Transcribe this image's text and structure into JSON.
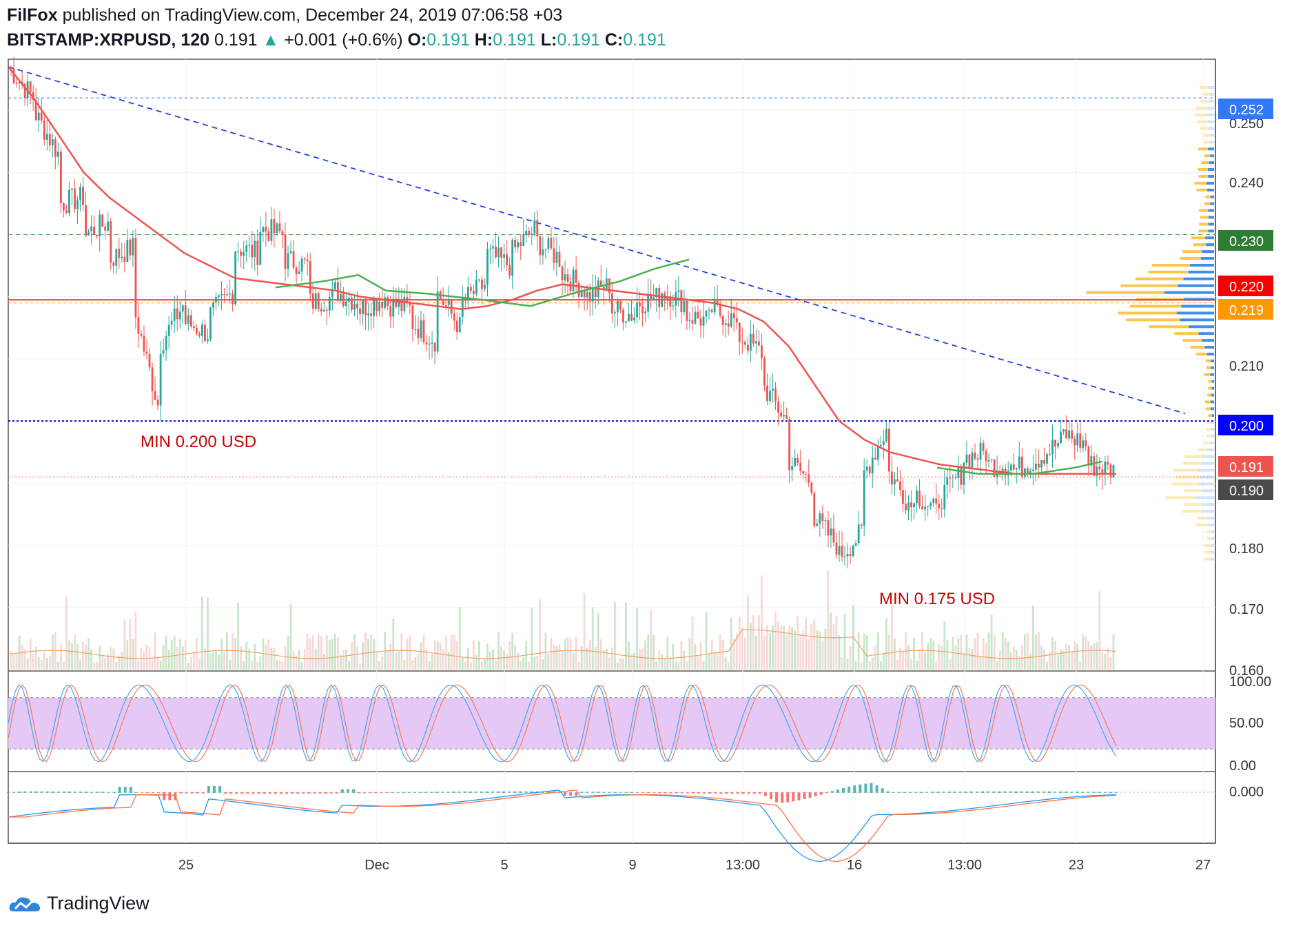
{
  "header": {
    "author": "FilFox",
    "published": "published on TradingView.com, December 24, 2019 07:06:58 +03",
    "symbol": "BITSTAMP:XRPUSD, 120",
    "price": "0.191",
    "arrow": "▲",
    "change": "+0.001 (+0.6%)",
    "o_label": "O:",
    "o": "0.191",
    "h_label": "H:",
    "h": "0.191",
    "l_label": "L:",
    "l": "0.191",
    "c_label": "C:",
    "c": "0.191"
  },
  "footer": {
    "brand": "TradingView"
  },
  "colors": {
    "up": "#26a69a",
    "down": "#ef5350",
    "ma": "#ef5350",
    "ma2": "#4caf50",
    "trend": "#1e40e6",
    "support": "#0000cc",
    "resistance": "#e53935",
    "label_blue": "#3179f5",
    "label_green": "#2e7d32",
    "label_red": "#f50000",
    "label_orange": "#ff9800",
    "label_dark": "#4a4a4a",
    "annot": "#cc0000"
  },
  "annotations": {
    "min1": "MIN 0.200 USD",
    "min2": "MIN 0.175 USD"
  },
  "chart_data": {
    "type": "candlestick",
    "symbol": "BITSTAMP:XRPUSD",
    "interval": "120",
    "ylim": [
      0.16,
      0.258
    ],
    "y_ticks": [
      "0.250",
      "0.240",
      "0.230",
      "0.220",
      "0.210",
      "0.200",
      "0.190",
      "0.180",
      "0.170",
      "0.160"
    ],
    "x_ticks": [
      "25",
      "Dec",
      "5",
      "9",
      "13:00",
      "16",
      "13:00",
      "23",
      "27"
    ],
    "price_labels": [
      "0.252",
      "0.230",
      "0.220",
      "0.219",
      "0.200",
      "0.191",
      "0.190"
    ],
    "levels": {
      "top_dashed": 0.252,
      "green_dashed": 0.23,
      "red_solid": 0.2195,
      "orange_dashed": 0.219,
      "support": 0.2,
      "last": 0.191
    },
    "price_path": [
      [
        0.25,
        0.257
      ],
      [
        0.252,
        0.25
      ],
      [
        0.243,
        0.235
      ],
      [
        0.236,
        0.23
      ],
      [
        0.232,
        0.226
      ],
      [
        0.228,
        0.218
      ],
      [
        0.202,
        0.212
      ],
      [
        0.219,
        0.216
      ],
      [
        0.214,
        0.217
      ],
      [
        0.221,
        0.228
      ],
      [
        0.227,
        0.231
      ],
      [
        0.23,
        0.226
      ],
      [
        0.225,
        0.219
      ],
      [
        0.22,
        0.221
      ],
      [
        0.219,
        0.218
      ],
      [
        0.22,
        0.219
      ],
      [
        0.218,
        0.216
      ],
      [
        0.213,
        0.221
      ],
      [
        0.215,
        0.219
      ],
      [
        0.222,
        0.227
      ],
      [
        0.225,
        0.227
      ],
      [
        0.231,
        0.229
      ],
      [
        0.226,
        0.224
      ],
      [
        0.221,
        0.22
      ],
      [
        0.222,
        0.218
      ],
      [
        0.217,
        0.219
      ],
      [
        0.22,
        0.221
      ],
      [
        0.219,
        0.217
      ],
      [
        0.216,
        0.218
      ],
      [
        0.216,
        0.214
      ],
      [
        0.211,
        0.206
      ],
      [
        0.2,
        0.194
      ],
      [
        0.19,
        0.185
      ],
      [
        0.18,
        0.178
      ],
      [
        0.182,
        0.191
      ],
      [
        0.199,
        0.192
      ],
      [
        0.186,
        0.189
      ],
      [
        0.185,
        0.187
      ],
      [
        0.192,
        0.194
      ],
      [
        0.195,
        0.193
      ],
      [
        0.193,
        0.192
      ],
      [
        0.194,
        0.194
      ],
      [
        0.197,
        0.198
      ],
      [
        0.196,
        0.193
      ],
      [
        0.192,
        0.191
      ]
    ],
    "ma_path": [
      0.257,
      0.252,
      0.246,
      0.24,
      0.236,
      0.233,
      0.23,
      0.227,
      0.225,
      0.223,
      0.2225,
      0.222,
      0.2215,
      0.221,
      0.22,
      0.2195,
      0.219,
      0.2185,
      0.218,
      0.2185,
      0.2195,
      0.221,
      0.222,
      0.2215,
      0.221,
      0.2205,
      0.22,
      0.2195,
      0.219,
      0.218,
      0.216,
      0.212,
      0.206,
      0.2,
      0.197,
      0.195,
      0.194,
      0.193,
      0.1925,
      0.192,
      0.1915,
      0.1915,
      0.1915,
      0.1915,
      0.1915
    ],
    "stoch_levels": [
      20,
      80
    ],
    "stoch_ticks": [
      "100.00",
      "50.00",
      "0.00"
    ],
    "macd_ticks": [
      "0.000"
    ]
  }
}
